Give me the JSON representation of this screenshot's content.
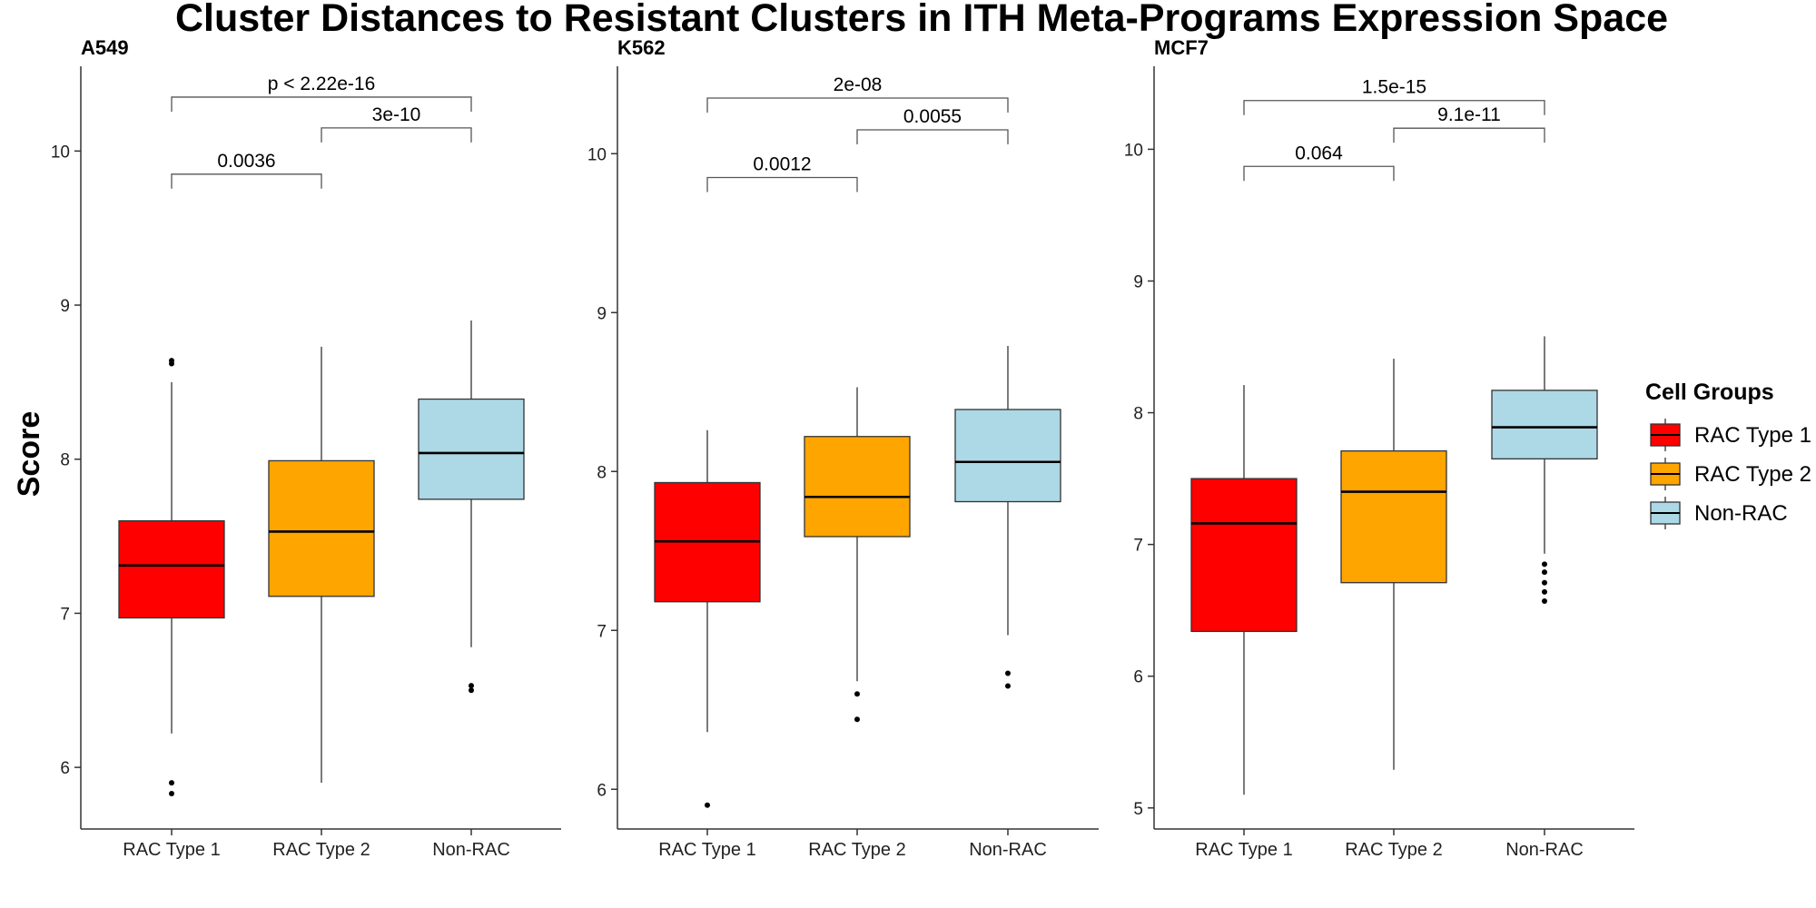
{
  "chart_data": {
    "type": "box",
    "title": "Cluster Distances to Resistant Clusters in ITH Meta-Programs Expression Space",
    "ylabel": "Score",
    "categories": [
      "RAC Type 1",
      "RAC Type 2",
      "Non-RAC"
    ],
    "colors": {
      "RAC Type 1": "#ff0000",
      "RAC Type 2": "#ffa500",
      "Non-RAC": "#add8e6"
    },
    "legend": {
      "title": "Cell Groups",
      "position": "right",
      "items": [
        {
          "label": "RAC Type 1",
          "color": "#ff0000"
        },
        {
          "label": "RAC Type 2",
          "color": "#ffa500"
        },
        {
          "label": "Non-RAC",
          "color": "#add8e6"
        }
      ]
    },
    "panels": [
      {
        "name": "A549",
        "ylim": [
          5.6,
          10.55
        ],
        "yticks": [
          6,
          7,
          8,
          9,
          10
        ],
        "boxes": [
          {
            "category": "RAC Type 1",
            "min": 6.22,
            "q1": 6.97,
            "median": 7.31,
            "q3": 7.6,
            "max": 8.5,
            "outliers": [
              8.62,
              8.64,
              5.9,
              5.83
            ]
          },
          {
            "category": "RAC Type 2",
            "min": 5.9,
            "q1": 7.11,
            "median": 7.53,
            "q3": 7.99,
            "max": 8.73,
            "outliers": []
          },
          {
            "category": "Non-RAC",
            "min": 6.78,
            "q1": 7.74,
            "median": 8.04,
            "q3": 8.39,
            "max": 8.9,
            "outliers": [
              6.53,
              6.5
            ]
          }
        ],
        "comparisons": [
          {
            "from": 0,
            "to": 1,
            "y": 9.85,
            "label": "0.0036"
          },
          {
            "from": 1,
            "to": 2,
            "y": 10.15,
            "label": "3e-10"
          },
          {
            "from": 0,
            "to": 2,
            "y": 10.35,
            "label": "p < 2.22e-16"
          }
        ]
      },
      {
        "name": "K562",
        "ylim": [
          5.75,
          10.55
        ],
        "yticks": [
          6,
          7,
          8,
          9,
          10
        ],
        "boxes": [
          {
            "category": "RAC Type 1",
            "min": 6.36,
            "q1": 7.18,
            "median": 7.56,
            "q3": 7.93,
            "max": 8.26,
            "outliers": [
              5.9
            ]
          },
          {
            "category": "RAC Type 2",
            "min": 6.68,
            "q1": 7.59,
            "median": 7.84,
            "q3": 8.22,
            "max": 8.53,
            "outliers": [
              6.6,
              6.44
            ]
          },
          {
            "category": "Non-RAC",
            "min": 6.97,
            "q1": 7.81,
            "median": 8.06,
            "q3": 8.39,
            "max": 8.79,
            "outliers": [
              6.73,
              6.65
            ]
          }
        ],
        "comparisons": [
          {
            "from": 0,
            "to": 1,
            "y": 9.85,
            "label": "0.0012"
          },
          {
            "from": 1,
            "to": 2,
            "y": 10.15,
            "label": "0.0055"
          },
          {
            "from": 0,
            "to": 2,
            "y": 10.35,
            "label": "2e-08"
          }
        ]
      },
      {
        "name": "MCF7",
        "ylim": [
          4.84,
          10.63
        ],
        "yticks": [
          5,
          6,
          7,
          8,
          9,
          10
        ],
        "boxes": [
          {
            "category": "RAC Type 1",
            "min": 5.1,
            "q1": 6.34,
            "median": 7.16,
            "q3": 7.5,
            "max": 8.21,
            "outliers": []
          },
          {
            "category": "RAC Type 2",
            "min": 5.29,
            "q1": 6.71,
            "median": 7.4,
            "q3": 7.71,
            "max": 8.41,
            "outliers": []
          },
          {
            "category": "Non-RAC",
            "min": 6.93,
            "q1": 7.65,
            "median": 7.89,
            "q3": 8.17,
            "max": 8.58,
            "outliers": [
              6.85,
              6.79,
              6.71,
              6.64,
              6.57
            ]
          }
        ],
        "comparisons": [
          {
            "from": 0,
            "to": 1,
            "y": 9.87,
            "label": "0.064"
          },
          {
            "from": 1,
            "to": 2,
            "y": 10.16,
            "label": "9.1e-11"
          },
          {
            "from": 0,
            "to": 2,
            "y": 10.37,
            "label": "1.5e-15"
          }
        ]
      }
    ]
  }
}
